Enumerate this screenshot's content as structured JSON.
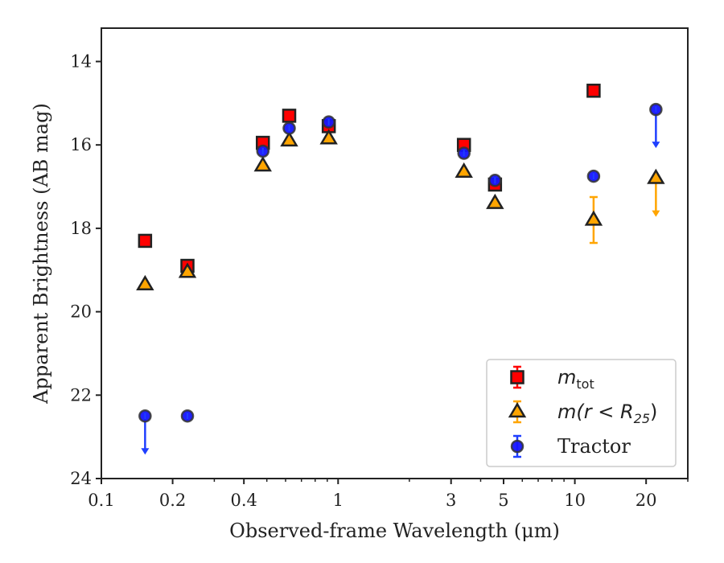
{
  "chart_data": {
    "type": "scatter",
    "title": "",
    "xlabel": "Observed-frame Wavelength (μm)",
    "ylabel": "Apparent Brightness (AB mag)",
    "xscale": "log",
    "xlim": [
      0.1,
      30
    ],
    "ylim": [
      24,
      13.2
    ],
    "y_inverted": true,
    "x_ticks": [
      0.1,
      0.2,
      0.4,
      1,
      3,
      5,
      10,
      20
    ],
    "x_tick_labels": [
      "0.1",
      "0.2",
      "0.4",
      "1",
      "3",
      "5",
      "10",
      "20"
    ],
    "y_ticks": [
      14,
      16,
      18,
      20,
      22,
      24
    ],
    "y_tick_labels": [
      "14",
      "16",
      "18",
      "20",
      "22",
      "24"
    ],
    "grid": false,
    "legend_position": "bottom-right",
    "series": [
      {
        "key": "mtot",
        "legend_main": "m",
        "legend_sub": "tot",
        "color": "#ff0000",
        "errcolor": "#ff0000",
        "marker": "square",
        "points": [
          {
            "x": 0.153,
            "y": 18.3
          },
          {
            "x": 0.231,
            "y": 18.9
          },
          {
            "x": 0.481,
            "y": 15.95
          },
          {
            "x": 0.6215,
            "y": 15.3
          },
          {
            "x": 0.9131,
            "y": 15.55
          },
          {
            "x": 3.4,
            "y": 16.0
          },
          {
            "x": 4.6,
            "y": 16.95
          },
          {
            "x": 12.0,
            "y": 14.7
          }
        ]
      },
      {
        "key": "mr25",
        "legend_main": "m(r < R",
        "legend_sub": "25",
        "legend_tail": ")",
        "color": "#ffa500",
        "errcolor": "#ffa500",
        "marker": "triangle",
        "points": [
          {
            "x": 0.153,
            "y": 19.35
          },
          {
            "x": 0.231,
            "y": 19.05
          },
          {
            "x": 0.481,
            "y": 16.5
          },
          {
            "x": 0.6215,
            "y": 15.9
          },
          {
            "x": 0.9131,
            "y": 15.85
          },
          {
            "x": 3.4,
            "y": 16.65
          },
          {
            "x": 4.6,
            "y": 17.4
          },
          {
            "x": 12.0,
            "y": 17.8,
            "yerr": 0.55
          },
          {
            "x": 22.0,
            "y": 16.8,
            "upper_limit": true
          }
        ]
      },
      {
        "key": "tractor",
        "legend_main": "Tractor",
        "color": "#1515ff",
        "errcolor": "#1f3fff",
        "marker": "circle",
        "points": [
          {
            "x": 0.153,
            "y": 22.5,
            "upper_limit": true
          },
          {
            "x": 0.231,
            "y": 22.5
          },
          {
            "x": 0.481,
            "y": 16.15
          },
          {
            "x": 0.6215,
            "y": 15.6
          },
          {
            "x": 0.9131,
            "y": 15.45
          },
          {
            "x": 3.4,
            "y": 16.2
          },
          {
            "x": 4.6,
            "y": 16.85
          },
          {
            "x": 12.0,
            "y": 16.75
          },
          {
            "x": 22.0,
            "y": 15.15,
            "upper_limit": true
          }
        ]
      }
    ]
  }
}
